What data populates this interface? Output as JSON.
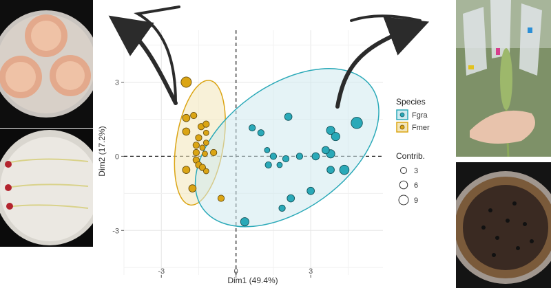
{
  "chart_data": {
    "type": "scatter",
    "title": "",
    "xlabel": "Dim1 (49.4%)",
    "ylabel": "Dim2 (17.2%)",
    "xlim": [
      -4.5,
      5.9
    ],
    "ylim": [
      -4.8,
      5.1
    ],
    "xticks": [
      -3,
      0,
      3
    ],
    "yticks": [
      -3,
      0,
      3
    ],
    "x_tick_labels": [
      "-3",
      "0",
      "3"
    ],
    "y_tick_labels": [
      "-3",
      "0",
      "3"
    ],
    "legend": {
      "species_title": "Species",
      "species": [
        {
          "name": "Fgra",
          "color": "#2aa9b8",
          "fill": "#cfeaef"
        },
        {
          "name": "Fmer",
          "color": "#dba514",
          "fill": "#f3e5b8"
        }
      ],
      "size_title": "Contrib.",
      "sizes": [
        {
          "label": "3",
          "value": 3
        },
        {
          "label": "6",
          "value": 6
        },
        {
          "label": "9",
          "value": 9
        }
      ]
    },
    "ellipses": [
      {
        "series": "Fmer",
        "cx": -1.45,
        "cy": 0.55,
        "rx": 2.55,
        "ry": 0.95,
        "angle_deg": -81
      },
      {
        "series": "Fgra",
        "cx": 2.05,
        "cy": 0.35,
        "rx": 4.2,
        "ry": 2.5,
        "angle_deg": -36
      }
    ],
    "series": [
      {
        "name": "Fmer",
        "points": [
          {
            "x": -2.0,
            "y": 3.0,
            "c": 7
          },
          {
            "x": -2.0,
            "y": 1.55,
            "c": 4
          },
          {
            "x": -1.7,
            "y": 1.65,
            "c": 3
          },
          {
            "x": -2.0,
            "y": 1.0,
            "c": 4
          },
          {
            "x": -1.4,
            "y": 1.2,
            "c": 3
          },
          {
            "x": -1.2,
            "y": 1.3,
            "c": 3
          },
          {
            "x": -1.2,
            "y": 0.95,
            "c": 2
          },
          {
            "x": -1.5,
            "y": 0.75,
            "c": 3
          },
          {
            "x": -1.2,
            "y": 0.55,
            "c": 2
          },
          {
            "x": -1.6,
            "y": 0.45,
            "c": 3
          },
          {
            "x": -1.35,
            "y": 0.35,
            "c": 2
          },
          {
            "x": -1.6,
            "y": 0.15,
            "c": 3
          },
          {
            "x": -0.9,
            "y": 0.15,
            "c": 3
          },
          {
            "x": -1.25,
            "y": 0.1,
            "c": 2
          },
          {
            "x": -1.6,
            "y": -0.15,
            "c": 3
          },
          {
            "x": -1.5,
            "y": -0.35,
            "c": 3
          },
          {
            "x": -2.0,
            "y": -0.55,
            "c": 4
          },
          {
            "x": -1.35,
            "y": -0.45,
            "c": 3
          },
          {
            "x": -1.2,
            "y": -0.6,
            "c": 2
          },
          {
            "x": -1.75,
            "y": -1.3,
            "c": 4
          },
          {
            "x": -0.6,
            "y": -1.7,
            "c": 3
          }
        ]
      },
      {
        "name": "Fgra",
        "points": [
          {
            "x": 4.85,
            "y": 1.35,
            "c": 8
          },
          {
            "x": 2.1,
            "y": 1.6,
            "c": 4
          },
          {
            "x": 3.8,
            "y": 1.05,
            "c": 5
          },
          {
            "x": 4.0,
            "y": 0.8,
            "c": 5
          },
          {
            "x": 0.65,
            "y": 1.15,
            "c": 3
          },
          {
            "x": 1.0,
            "y": 0.95,
            "c": 3
          },
          {
            "x": 3.8,
            "y": 0.1,
            "c": 5
          },
          {
            "x": 3.6,
            "y": 0.25,
            "c": 4
          },
          {
            "x": 1.25,
            "y": 0.25,
            "c": 2
          },
          {
            "x": 1.5,
            "y": 0.0,
            "c": 3
          },
          {
            "x": 2.0,
            "y": -0.1,
            "c": 3
          },
          {
            "x": 2.55,
            "y": 0.0,
            "c": 3
          },
          {
            "x": 3.2,
            "y": 0.0,
            "c": 4
          },
          {
            "x": 1.3,
            "y": -0.35,
            "c": 3
          },
          {
            "x": 1.75,
            "y": -0.35,
            "c": 2
          },
          {
            "x": 3.8,
            "y": -0.55,
            "c": 4
          },
          {
            "x": 4.35,
            "y": -0.55,
            "c": 6
          },
          {
            "x": 3.0,
            "y": -1.4,
            "c": 4
          },
          {
            "x": 2.2,
            "y": -1.7,
            "c": 4
          },
          {
            "x": 1.85,
            "y": -2.1,
            "c": 3
          },
          {
            "x": 0.35,
            "y": -2.65,
            "c": 5
          }
        ]
      }
    ]
  }
}
